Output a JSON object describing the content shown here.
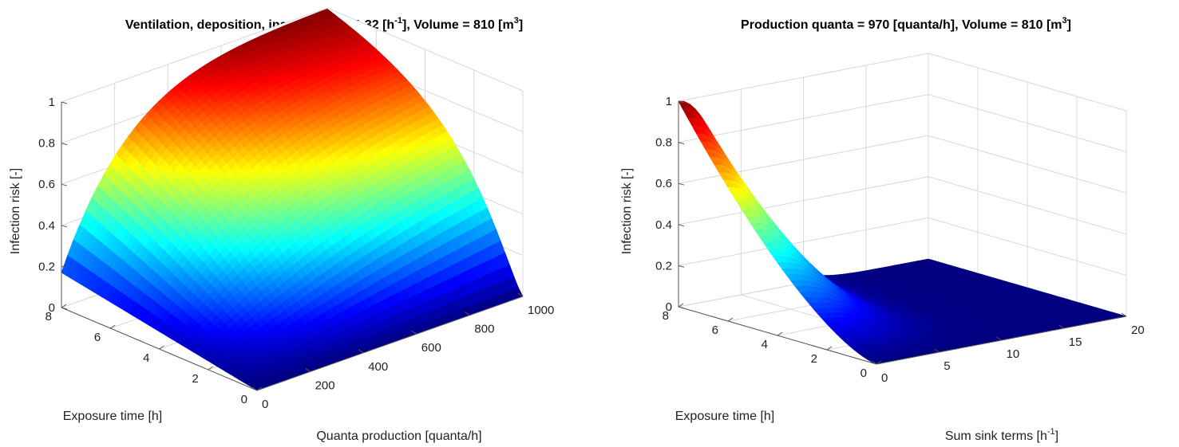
{
  "chart_data": [
    {
      "type": "surface",
      "title_prefix": "Ventilation, deposition, inactivation = 1.32 [h",
      "title_sup1": "-1",
      "title_mid": "], Volume = 810 [m",
      "title_sup2": "3",
      "title_suffix": "]",
      "xlabel": "Quanta production [quanta/h]",
      "ylabel": "Exposure time [h]",
      "zlabel": "Infection risk [-]",
      "xlim": [
        0,
        1000
      ],
      "ylim": [
        0,
        8
      ],
      "zlim": [
        0,
        1
      ],
      "xticks": [
        "0",
        "200",
        "400",
        "600",
        "800",
        "1000"
      ],
      "yticks": [
        "0",
        "2",
        "4",
        "6",
        "8"
      ],
      "zticks": [
        "0",
        "0.2",
        "0.4",
        "0.6",
        "0.8",
        "1"
      ],
      "constants": {
        "sink_rate_per_h": 1.32,
        "volume_m3": 810
      },
      "corner_values": [
        {
          "x": 0,
          "y": 0,
          "z": 0
        },
        {
          "x": 1000,
          "y": 0,
          "z": 0
        },
        {
          "x": 0,
          "y": 8,
          "z": 0.17
        },
        {
          "x": 1000,
          "y": 8,
          "z": 1.0
        }
      ],
      "colormap": "jet",
      "grid": true
    },
    {
      "type": "surface",
      "title_prefix": "Production quanta = 970 [quanta/h], Volume = 810 [m",
      "title_sup1": "3",
      "title_suffix": "]",
      "xlabel_prefix": "Sum sink terms [h",
      "xlabel_sup": "-1",
      "xlabel_suffix": "]",
      "ylabel": "Exposure time [h]",
      "zlabel": "Infection risk [-]",
      "xlim": [
        0,
        20
      ],
      "ylim": [
        0,
        8
      ],
      "zlim": [
        0,
        1
      ],
      "xticks": [
        "0",
        "5",
        "10",
        "15",
        "20"
      ],
      "yticks": [
        "0",
        "2",
        "4",
        "6",
        "8"
      ],
      "zticks": [
        "0",
        "0.2",
        "0.4",
        "0.6",
        "0.8",
        "1"
      ],
      "constants": {
        "quanta_production_per_h": 970,
        "volume_m3": 810
      },
      "corner_values": [
        {
          "x": 0,
          "y": 8,
          "z": 1.0
        },
        {
          "x": 20,
          "y": 8,
          "z": 0.0
        },
        {
          "x": 0,
          "y": 0,
          "z": 0.0
        },
        {
          "x": 20,
          "y": 0,
          "z": 0.0
        }
      ],
      "colormap": "jet",
      "grid": true
    }
  ]
}
